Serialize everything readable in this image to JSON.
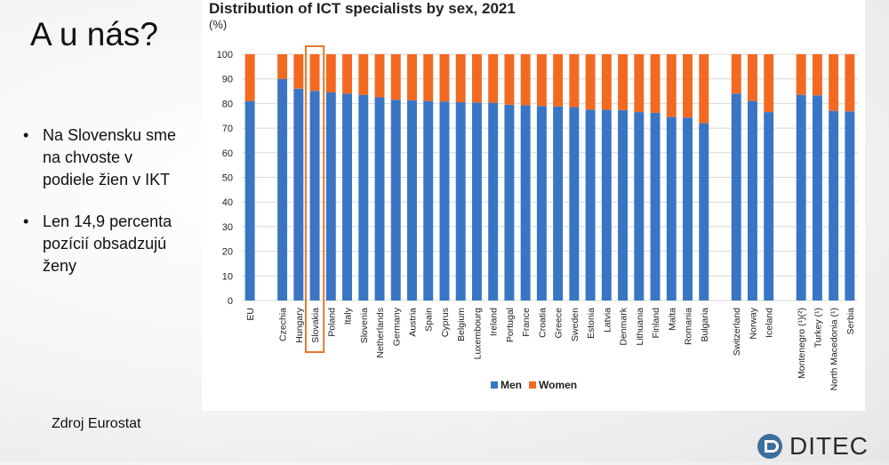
{
  "slide": {
    "title": "A u nás?",
    "bullets": [
      "Na Slovensku sme na chvoste v podiele žien v IKT",
      "Len 14,9 percenta pozícií obsadzujú ženy"
    ],
    "source": "Zdroj Eurostat",
    "logo": "DITEC"
  },
  "colors": {
    "men": "#3a75c4",
    "women": "#f26a21",
    "highlight": "#e8792e",
    "grid": "#d9d9d9"
  },
  "chart_data": {
    "type": "bar",
    "stacked": true,
    "title": "Distribution of ICT specialists by sex, 2021",
    "unit": "(%)",
    "ylim": [
      0,
      100
    ],
    "yticks": [
      0,
      10,
      20,
      30,
      40,
      50,
      60,
      70,
      80,
      90,
      100
    ],
    "grid": true,
    "legend_position": "bottom",
    "highlighted_category": "Slovakia",
    "categories": [
      "EU",
      "",
      "Czechia",
      "Hungary",
      "Slovakia",
      "Poland",
      "Italy",
      "Slovenia",
      "Netherlands",
      "Germany",
      "Austria",
      "Spain",
      "Cyprus",
      "Belgium",
      "Luxembourg",
      "Ireland",
      "Portugal",
      "France",
      "Croatia",
      "Greece",
      "Sweden",
      "Estonia",
      "Latvia",
      "Denmark",
      "Lithuania",
      "Finland",
      "Malta",
      "Romania",
      "Bulgaria",
      "",
      "Switzerland",
      "Norway",
      "Iceland",
      "",
      "Montenegro (¹)(²)",
      "Turkey (¹)",
      "North Macedonia (¹)",
      "Serbia"
    ],
    "series": [
      {
        "name": "Men",
        "values": [
          81,
          null,
          90,
          86,
          85.1,
          84.5,
          84,
          83.5,
          82.5,
          81.5,
          81.3,
          81,
          80.8,
          80.5,
          80.4,
          80.3,
          79.5,
          79.3,
          79,
          78.8,
          78.5,
          77.5,
          77.5,
          77.3,
          76.5,
          76.2,
          74.5,
          74.3,
          72,
          null,
          84,
          81,
          76.5,
          null,
          83.5,
          83.3,
          77,
          76.8
        ]
      },
      {
        "name": "Women",
        "values": [
          19,
          null,
          10,
          14,
          14.9,
          15.5,
          16,
          16.5,
          17.5,
          18.5,
          18.7,
          19,
          19.2,
          19.5,
          19.6,
          19.7,
          20.5,
          20.7,
          21,
          21.2,
          21.5,
          22.5,
          22.5,
          22.7,
          23.5,
          23.8,
          25.5,
          25.7,
          28,
          null,
          16,
          19,
          23.5,
          null,
          16.5,
          16.7,
          23,
          23.2
        ]
      }
    ]
  }
}
